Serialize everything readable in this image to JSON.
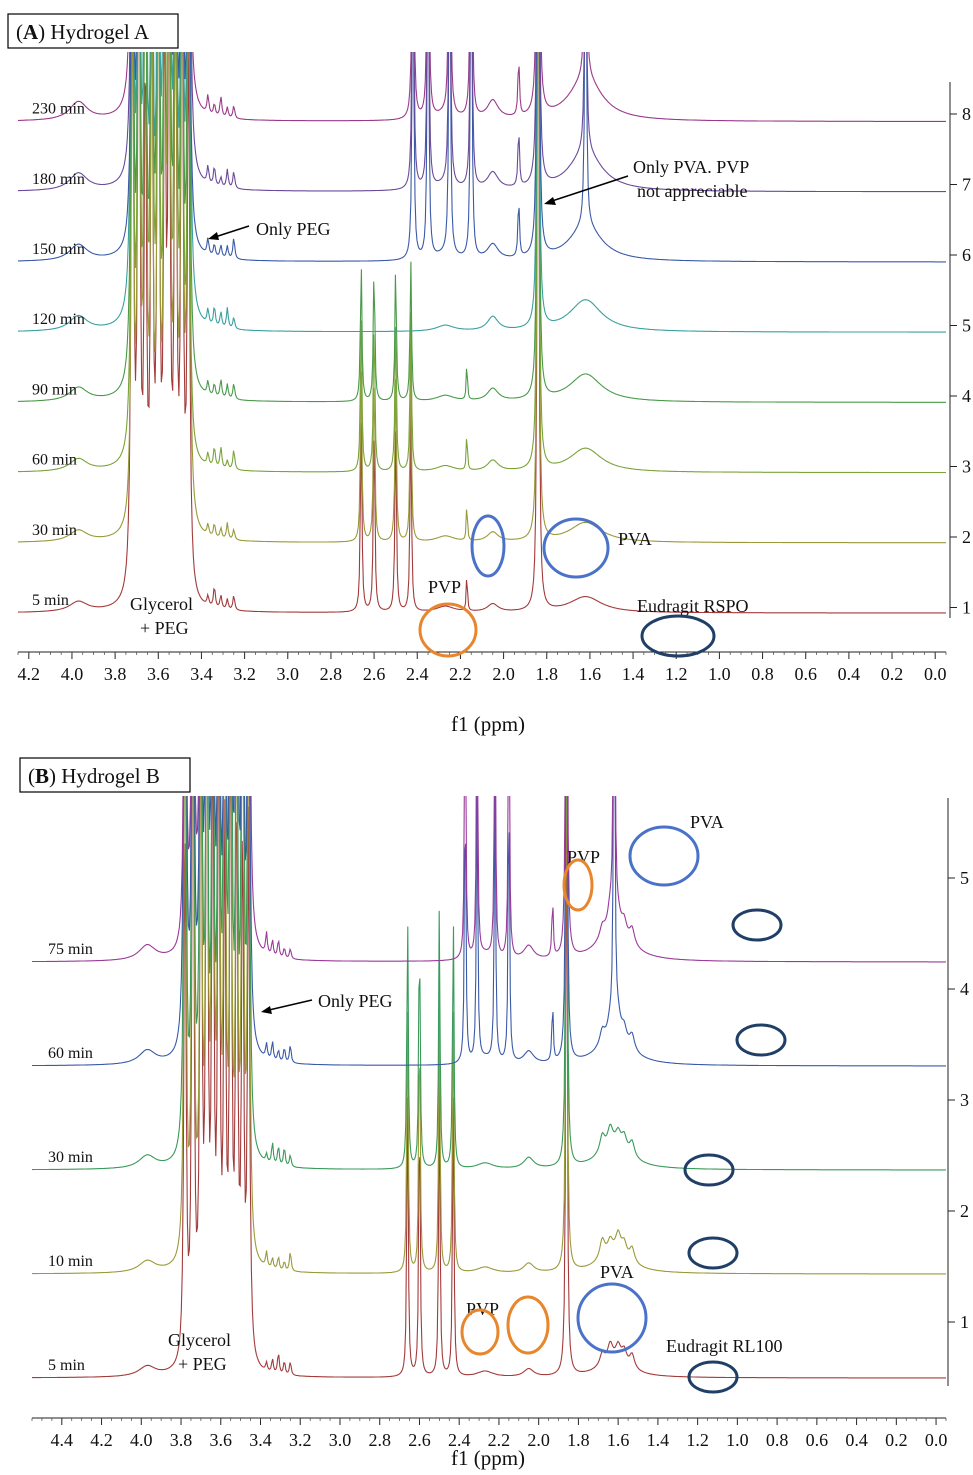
{
  "chart_data": [
    {
      "type": "line",
      "title_letter": "A",
      "title_rest": ") Hydrogel A",
      "title_open": "(",
      "xlabel": "f1 (ppm)",
      "xlim": [
        4.25,
        -0.05
      ],
      "x_ticks": [
        "4.2",
        "4.0",
        "3.8",
        "3.6",
        "3.4",
        "3.2",
        "3.0",
        "2.8",
        "2.6",
        "2.4",
        "2.2",
        "2.0",
        "1.8",
        "1.6",
        "1.4",
        "1.2",
        "1.0",
        "0.8",
        "0.6",
        "0.4",
        "0.2",
        "0.0"
      ],
      "y_ticks": [
        "1",
        "2",
        "3",
        "4",
        "5",
        "6",
        "7",
        "8"
      ],
      "series": [
        {
          "name": "5 min",
          "trace": 1,
          "color": "#a33b3b"
        },
        {
          "name": "30 min",
          "trace": 2,
          "color": "#9a9a3a"
        },
        {
          "name": "60 min",
          "trace": 3,
          "color": "#7aa33a"
        },
        {
          "name": "90 min",
          "trace": 4,
          "color": "#4a9a4a"
        },
        {
          "name": "120 min",
          "trace": 5,
          "color": "#3aa0a0"
        },
        {
          "name": "150 min",
          "trace": 6,
          "color": "#3a5aa8"
        },
        {
          "name": "180 min",
          "trace": 7,
          "color": "#6a4a9a"
        },
        {
          "name": "230 min",
          "trace": 8,
          "color": "#9a3a8a"
        }
      ],
      "annotations": [
        {
          "text": "Only PEG"
        },
        {
          "text": "Only PVA. PVP"
        },
        {
          "text": "not appreciable"
        },
        {
          "text": "PVA"
        },
        {
          "text": "PVP"
        },
        {
          "text": "Eudragit RSPO"
        },
        {
          "text": "Glycerol"
        },
        {
          "text": "+ PEG"
        }
      ],
      "circle_colors": {
        "pvp": "#e8862e",
        "pva": "#4a72c8",
        "eudragit": "#1f3f66"
      }
    },
    {
      "type": "line",
      "title_letter": "B",
      "title_rest": ") Hydrogel B",
      "title_open": "(",
      "xlabel": "f1 (ppm)",
      "xlim": [
        4.55,
        -0.05
      ],
      "x_ticks": [
        "4.4",
        "4.2",
        "4.0",
        "3.8",
        "3.6",
        "3.4",
        "3.2",
        "3.0",
        "2.8",
        "2.6",
        "2.4",
        "2.2",
        "2.0",
        "1.8",
        "1.6",
        "1.4",
        "1.2",
        "1.0",
        "0.8",
        "0.6",
        "0.4",
        "0.2",
        "0.0"
      ],
      "y_ticks": [
        "1",
        "2",
        "3",
        "4",
        "5"
      ],
      "series": [
        {
          "name": "5 min",
          "trace": 1,
          "color": "#a33b3b"
        },
        {
          "name": "10 min",
          "trace": 2,
          "color": "#9a9a3a"
        },
        {
          "name": "30 min",
          "trace": 3,
          "color": "#3a9a5a"
        },
        {
          "name": "60 min",
          "trace": 4,
          "color": "#3a5aa8"
        },
        {
          "name": "75 min",
          "trace": 5,
          "color": "#9a3a9a"
        }
      ],
      "annotations": [
        {
          "text": "Only PEG"
        },
        {
          "text": "PVP"
        },
        {
          "text": "PVA"
        },
        {
          "text": "PVP"
        },
        {
          "text": "PVA"
        },
        {
          "text": "Eudragit RL100"
        },
        {
          "text": "Glycerol"
        },
        {
          "text": "+ PEG"
        }
      ],
      "circle_colors": {
        "pvp": "#e8862e",
        "pva": "#4a72c8",
        "eudragit": "#1f3f66"
      }
    }
  ]
}
